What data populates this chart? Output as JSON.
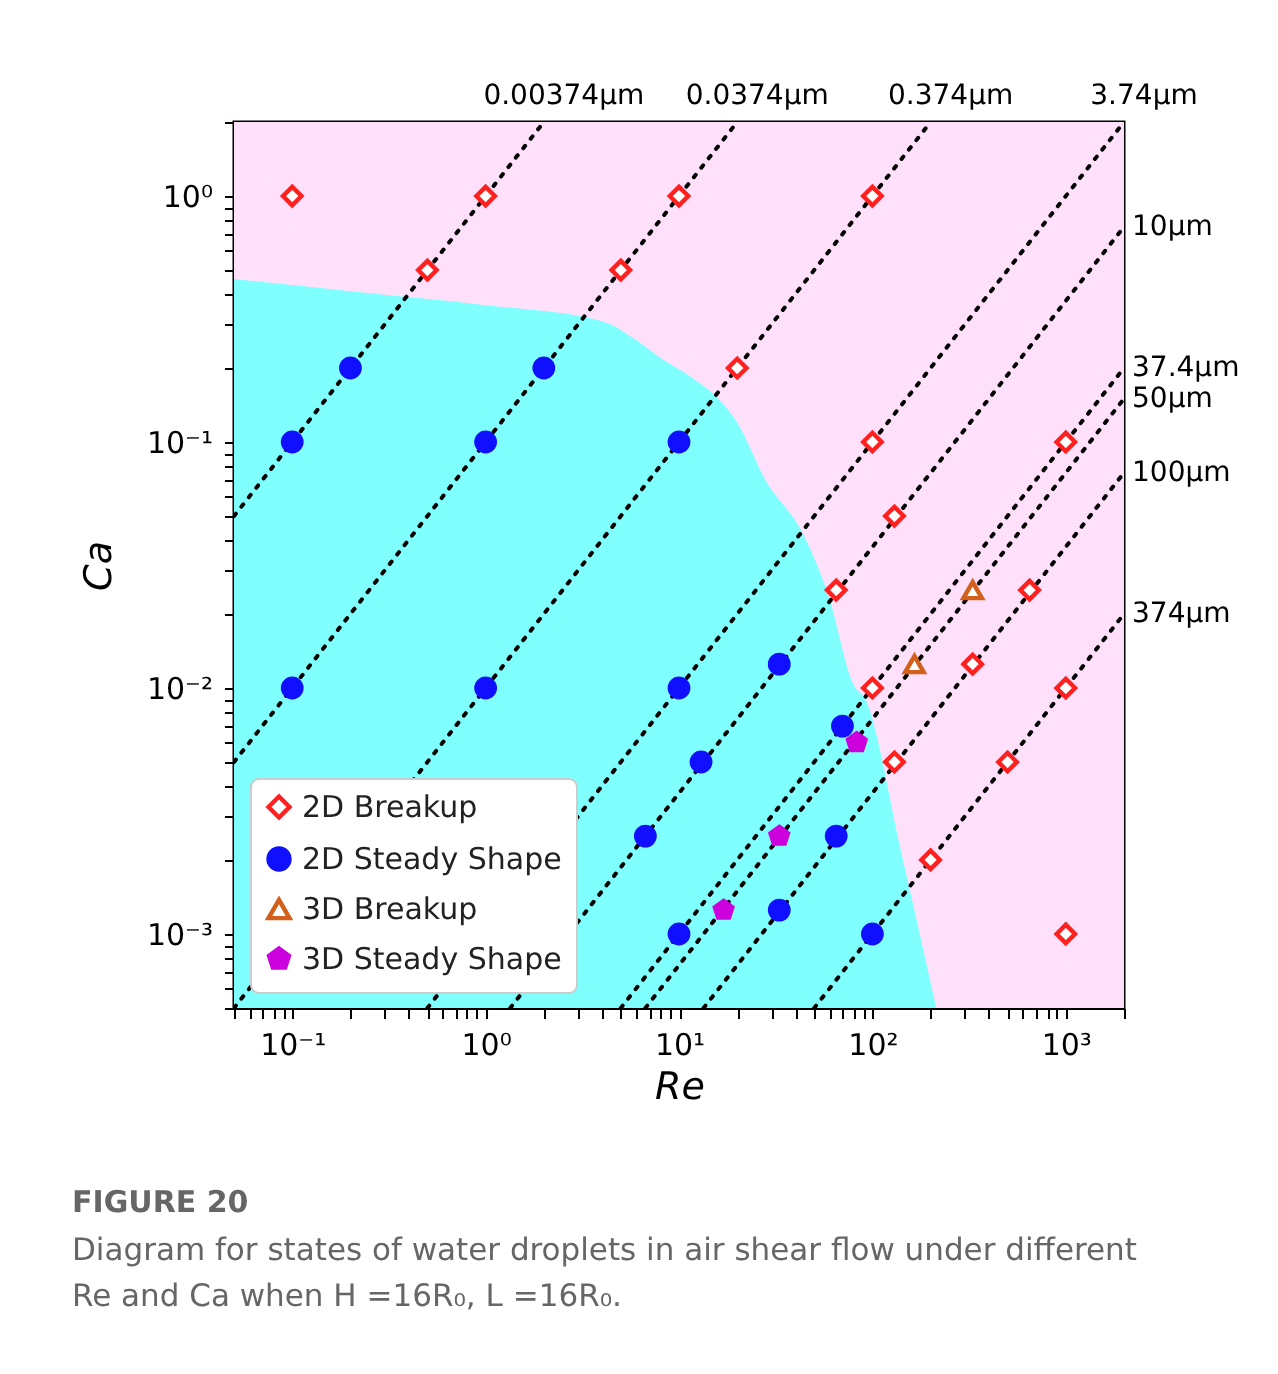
{
  "chart_data": {
    "type": "scatter",
    "xlabel": "Re",
    "ylabel": "Ca",
    "xlim": [
      0.05,
      2000
    ],
    "ylim": [
      0.0005,
      2
    ],
    "xticks": [
      {
        "value": 0.05,
        "label": null
      },
      {
        "value": 0.06,
        "label": null
      },
      {
        "value": 0.07,
        "label": null
      },
      {
        "value": 0.08,
        "label": null
      },
      {
        "value": 0.09,
        "label": null
      },
      {
        "value": 0.1,
        "label": "10⁻¹"
      },
      {
        "value": 0.2,
        "label": null
      },
      {
        "value": 0.3,
        "label": null
      },
      {
        "value": 0.4,
        "label": null
      },
      {
        "value": 0.5,
        "label": null
      },
      {
        "value": 0.6,
        "label": null
      },
      {
        "value": 0.7,
        "label": null
      },
      {
        "value": 0.8,
        "label": null
      },
      {
        "value": 0.9,
        "label": null
      },
      {
        "value": 1,
        "label": "10⁰"
      },
      {
        "value": 2,
        "label": null
      },
      {
        "value": 3,
        "label": null
      },
      {
        "value": 4,
        "label": null
      },
      {
        "value": 5,
        "label": null
      },
      {
        "value": 6,
        "label": null
      },
      {
        "value": 7,
        "label": null
      },
      {
        "value": 8,
        "label": null
      },
      {
        "value": 9,
        "label": null
      },
      {
        "value": 10,
        "label": "10¹"
      },
      {
        "value": 20,
        "label": null
      },
      {
        "value": 30,
        "label": null
      },
      {
        "value": 40,
        "label": null
      },
      {
        "value": 50,
        "label": null
      },
      {
        "value": 60,
        "label": null
      },
      {
        "value": 70,
        "label": null
      },
      {
        "value": 80,
        "label": null
      },
      {
        "value": 90,
        "label": null
      },
      {
        "value": 100,
        "label": "10²"
      },
      {
        "value": 200,
        "label": null
      },
      {
        "value": 300,
        "label": null
      },
      {
        "value": 400,
        "label": null
      },
      {
        "value": 500,
        "label": null
      },
      {
        "value": 600,
        "label": null
      },
      {
        "value": 700,
        "label": null
      },
      {
        "value": 800,
        "label": null
      },
      {
        "value": 900,
        "label": null
      },
      {
        "value": 1000,
        "label": "10³"
      },
      {
        "value": 2000,
        "label": null
      }
    ],
    "yticks": [
      {
        "value": 0.0005,
        "label": null
      },
      {
        "value": 0.0006,
        "label": null
      },
      {
        "value": 0.0007,
        "label": null
      },
      {
        "value": 0.0008,
        "label": null
      },
      {
        "value": 0.0009,
        "label": null
      },
      {
        "value": 0.001,
        "label": "10⁻³"
      },
      {
        "value": 0.002,
        "label": null
      },
      {
        "value": 0.003,
        "label": null
      },
      {
        "value": 0.004,
        "label": null
      },
      {
        "value": 0.005,
        "label": null
      },
      {
        "value": 0.006,
        "label": null
      },
      {
        "value": 0.007,
        "label": null
      },
      {
        "value": 0.008,
        "label": null
      },
      {
        "value": 0.009,
        "label": null
      },
      {
        "value": 0.01,
        "label": "10⁻²"
      },
      {
        "value": 0.02,
        "label": null
      },
      {
        "value": 0.03,
        "label": null
      },
      {
        "value": 0.04,
        "label": null
      },
      {
        "value": 0.05,
        "label": null
      },
      {
        "value": 0.06,
        "label": null
      },
      {
        "value": 0.07,
        "label": null
      },
      {
        "value": 0.08,
        "label": null
      },
      {
        "value": 0.09,
        "label": null
      },
      {
        "value": 0.1,
        "label": "10⁻¹"
      },
      {
        "value": 0.2,
        "label": null
      },
      {
        "value": 0.3,
        "label": null
      },
      {
        "value": 0.4,
        "label": null
      },
      {
        "value": 0.5,
        "label": null
      },
      {
        "value": 0.6,
        "label": null
      },
      {
        "value": 0.7,
        "label": null
      },
      {
        "value": 0.8,
        "label": null
      },
      {
        "value": 0.9,
        "label": null
      },
      {
        "value": 1,
        "label": "10⁰"
      },
      {
        "value": 2,
        "label": null
      }
    ],
    "log": "xy",
    "legend": "bottom left",
    "bands": [
      {
        "axis": "y",
        "from": 0.0005,
        "to": 2,
        "color": "#ffe0fa"
      }
    ],
    "series": [
      {
        "type": "area",
        "color": "#80ffff",
        "x": [
          0.05,
          0.2,
          1,
          4,
          6,
          8,
          12,
          16,
          20,
          28,
          44,
          59,
          80,
          92,
          140,
          214
        ],
        "values": [
          0.46,
          0.41,
          0.36,
          0.31,
          0.26,
          0.22,
          0.18,
          0.15,
          0.12,
          0.07,
          0.042,
          0.024,
          0.0103,
          0.009,
          0.0022,
          0.0005
        ]
      },
      {
        "type": "line",
        "name": "0.00374μm",
        "color": "#000000",
        "line_style": "dotted",
        "x": [
          0.05,
          2
        ],
        "values": [
          0.05,
          2
        ]
      },
      {
        "type": "line",
        "name": "0.0374μm",
        "color": "#000000",
        "line_style": "dotted",
        "x": [
          0.05,
          20
        ],
        "values": [
          0.005,
          2
        ]
      },
      {
        "type": "line",
        "name": "0.374μm",
        "color": "#000000",
        "line_style": "dotted",
        "x": [
          0.05,
          200
        ],
        "values": [
          0.0005,
          2
        ]
      },
      {
        "type": "line",
        "name": "3.74μm",
        "color": "#000000",
        "line_style": "dotted",
        "x": [
          0.5,
          2000
        ],
        "values": [
          0.0005,
          2
        ]
      },
      {
        "type": "line",
        "name": "10μm",
        "color": "#000000",
        "line_style": "dotted",
        "x": [
          1.34,
          2000
        ],
        "values": [
          0.0005,
          0.75
        ]
      },
      {
        "type": "line",
        "name": "37.4μm",
        "color": "#000000",
        "line_style": "dotted",
        "x": [
          5,
          2000
        ],
        "values": [
          0.0005,
          0.2
        ]
      },
      {
        "type": "line",
        "name": "50μm",
        "color": "#000000",
        "line_style": "dotted",
        "x": [
          6.7,
          2000
        ],
        "values": [
          0.0005,
          0.15
        ]
      },
      {
        "type": "line",
        "name": "100μm",
        "color": "#000000",
        "line_style": "dotted",
        "x": [
          13.4,
          2000
        ],
        "values": [
          0.0005,
          0.075
        ]
      },
      {
        "type": "line",
        "name": "374μm",
        "color": "#000000",
        "line_style": "dotted",
        "x": [
          50,
          2000
        ],
        "values": [
          0.0005,
          0.02
        ]
      },
      {
        "name": "2D Breakup",
        "color": "#ff2020",
        "marker": "diamond",
        "x": [
          0.1,
          1,
          10,
          100,
          0.5,
          5,
          20,
          100,
          130,
          1000,
          65,
          650,
          330,
          100,
          1000,
          130,
          500,
          200,
          1000
        ],
        "values": [
          1,
          1,
          1,
          1,
          0.5,
          0.5,
          0.2,
          0.1,
          0.05,
          0.1,
          0.025,
          0.025,
          0.0125,
          0.01,
          0.01,
          0.005,
          0.005,
          0.002,
          0.001
        ]
      },
      {
        "name": "2D Steady Shape",
        "color": "#1010ff",
        "marker": "circle",
        "x": [
          0.2,
          2,
          0.1,
          1,
          10,
          0.1,
          1,
          10,
          33,
          70,
          13,
          6.7,
          65,
          10,
          33,
          100
        ],
        "values": [
          0.2,
          0.2,
          0.1,
          0.1,
          0.1,
          0.01,
          0.01,
          0.01,
          0.0125,
          0.007,
          0.005,
          0.0025,
          0.0025,
          0.001,
          0.00125,
          0.001
        ]
      },
      {
        "name": "3D Breakup",
        "color": "#d2601a",
        "marker": "triangle",
        "x": [
          165,
          330
        ],
        "values": [
          0.0125,
          0.025
        ]
      },
      {
        "name": "3D Steady Shape",
        "color": "#cc00dd",
        "x": [
          83,
          33,
          17
        ],
        "values": [
          0.006,
          0.0025,
          0.00125
        ]
      }
    ],
    "annotations": [
      "FIGURE 20",
      "Diagram for states of water droplets in air shear flow under different Re and Ca when H =16R₀, L =16R₀."
    ]
  }
}
